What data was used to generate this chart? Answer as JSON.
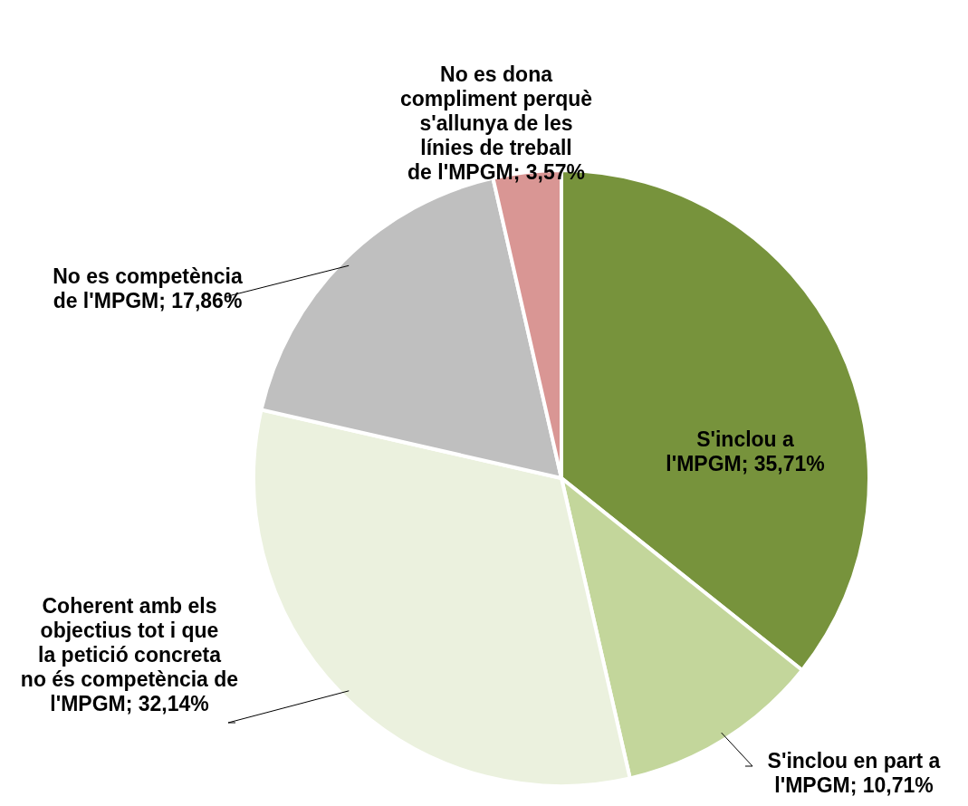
{
  "chart_data": {
    "type": "pie",
    "categories": [
      "S'inclou a l'MPGM",
      "S'inclou en part a l'MPGM",
      "Coherent amb els objectius tot i que la petició concreta no és competència de l'MPGM",
      "No es competència de l'MPGM",
      "No es dona compliment perquè s'allunya de les línies de treball de l'MPGM"
    ],
    "values": [
      35.71,
      10.71,
      32.14,
      17.86,
      3.57
    ],
    "colors": [
      "#77933c",
      "#c3d69b",
      "#ebf1de",
      "#bfbfbf",
      "#d99694"
    ],
    "value_labels": [
      "35,71%",
      "10,71%",
      "32,14%",
      "17,86%",
      "3,57%"
    ],
    "legend": false
  }
}
